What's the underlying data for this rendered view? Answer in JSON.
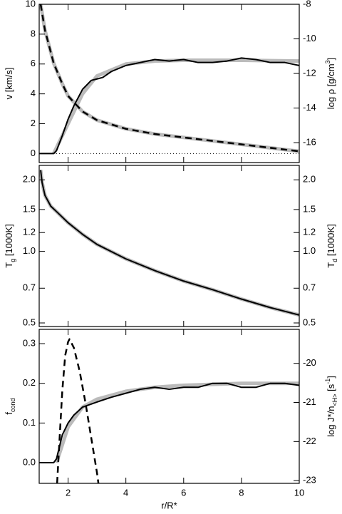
{
  "chart_data": [
    {
      "type": "line",
      "ylabel": [
        {
          "text": "v [km/s]"
        }
      ],
      "y2label": [
        {
          "text": "log ρ [g/cm"
        },
        {
          "text": "3",
          "shift": "super"
        },
        {
          "text": "]"
        }
      ],
      "xlim": [
        1,
        10
      ],
      "xticks": [
        2,
        4,
        6,
        8,
        10
      ],
      "ylim": [
        -0.6,
        10
      ],
      "yticks": [
        0,
        2,
        4,
        6,
        8,
        10
      ],
      "y2lim": [
        -17.15,
        -8
      ],
      "y2ticks": [
        -8,
        -10,
        -12,
        -14,
        -16
      ],
      "reference_line": {
        "value": 0,
        "style": "dotted"
      },
      "series": [
        {
          "color": "#bbbbbb",
          "width": 5,
          "dash": "solid",
          "x": [
            1.5,
            2,
            2.5,
            3,
            4,
            5,
            6,
            8,
            10
          ],
          "values": [
            0,
            2.0,
            4.0,
            5.2,
            6.0,
            6.2,
            6.25,
            6.25,
            6.2
          ]
        },
        {
          "color": "#bbbbbb",
          "width": 5,
          "dash": "solid",
          "axis": "y2",
          "x": [
            1.05,
            1.2,
            1.5,
            1.8,
            2,
            2.5,
            3,
            4,
            5,
            6,
            7,
            8,
            9,
            10
          ],
          "values": [
            -8.0,
            -9.5,
            -11.4,
            -12.6,
            -13.3,
            -14.2,
            -14.7,
            -15.2,
            -15.5,
            -15.7,
            -15.9,
            -16.1,
            -16.3,
            -16.5
          ]
        },
        {
          "color": "#000000",
          "width": 2,
          "dash": "solid",
          "x": [
            1,
            1.5,
            1.6,
            1.8,
            2,
            2.2,
            2.5,
            2.8,
            3,
            3.2,
            3.5,
            4,
            4.5,
            5,
            5.5,
            6,
            6.5,
            7,
            7.5,
            8,
            8.5,
            9,
            9.5,
            10
          ],
          "values": [
            0,
            0,
            0.2,
            1.2,
            2.3,
            3.2,
            4.3,
            4.9,
            5.0,
            5.1,
            5.5,
            5.9,
            6.1,
            6.3,
            6.2,
            6.3,
            6.1,
            6.1,
            6.2,
            6.4,
            6.3,
            6.1,
            6.1,
            5.9
          ]
        },
        {
          "color": "#000000",
          "width": 2.5,
          "dash": "dashed",
          "axis": "y2",
          "x": [
            1.05,
            1.2,
            1.5,
            1.8,
            2,
            2.5,
            3,
            4,
            5,
            6,
            7,
            8,
            9,
            10
          ],
          "values": [
            -8.0,
            -9.5,
            -11.4,
            -12.6,
            -13.3,
            -14.2,
            -14.7,
            -15.2,
            -15.5,
            -15.7,
            -15.9,
            -16.1,
            -16.3,
            -16.5
          ]
        }
      ]
    },
    {
      "type": "line",
      "log_scale": true,
      "ylabel": [
        {
          "text": "T"
        },
        {
          "text": "g",
          "shift": "sub"
        },
        {
          "text": " [1000K]"
        }
      ],
      "y2label": [
        {
          "text": "T"
        },
        {
          "text": "d",
          "shift": "sub"
        },
        {
          "text": " [1000K]"
        }
      ],
      "xlim": [
        1,
        10
      ],
      "xticks": [
        2,
        4,
        6,
        8,
        10
      ],
      "ylim": [
        0.483,
        2.3
      ],
      "yticks": [
        0.5,
        0.7,
        {
          "value": 1,
          "label": "1.0"
        },
        1.2,
        1.5,
        {
          "value": 2,
          "label": "2.0"
        }
      ],
      "y2lim": [
        0.483,
        2.3
      ],
      "y2ticks": [
        0.5,
        0.7,
        {
          "value": 1,
          "label": "1.0"
        },
        1.2,
        1.5,
        {
          "value": 2,
          "label": "2.0"
        }
      ],
      "series": [
        {
          "color": "#bbbbbb",
          "width": 5,
          "dash": "solid",
          "x": [
            1.05,
            1.1,
            1.2,
            1.4,
            1.6,
            2,
            2.5,
            3,
            4,
            5,
            6,
            7,
            8,
            9,
            10
          ],
          "values": [
            2.2,
            1.95,
            1.72,
            1.55,
            1.47,
            1.32,
            1.18,
            1.07,
            0.93,
            0.83,
            0.75,
            0.69,
            0.63,
            0.58,
            0.54
          ]
        },
        {
          "color": "#000000",
          "width": 2,
          "dash": "solid",
          "x": [
            1.05,
            1.1,
            1.2,
            1.4,
            1.6,
            2,
            2.5,
            3,
            4,
            5,
            6,
            7,
            8,
            9,
            10
          ],
          "values": [
            2.2,
            1.95,
            1.72,
            1.55,
            1.47,
            1.32,
            1.18,
            1.07,
            0.93,
            0.83,
            0.75,
            0.69,
            0.63,
            0.58,
            0.54
          ]
        }
      ]
    },
    {
      "type": "line",
      "xlabel": "r/R*",
      "ylabel": [
        {
          "text": "f"
        },
        {
          "text": "cond",
          "shift": "sub"
        }
      ],
      "y2label": [
        {
          "text": "log J*/n"
        },
        {
          "text": "<H>",
          "shift": "sub"
        },
        {
          "text": " [s"
        },
        {
          "text": "-1",
          "shift": "super"
        },
        {
          "text": "]"
        }
      ],
      "xlim": [
        1,
        10
      ],
      "xticks": [
        2,
        4,
        6,
        8,
        10
      ],
      "ylim": [
        -0.052,
        0.336
      ],
      "yticks": [
        {
          "value": 0,
          "label": "0.0"
        },
        0.1,
        0.2,
        0.3
      ],
      "y2lim": [
        -23.07,
        -19.13
      ],
      "y2ticks": [
        -20,
        -21,
        -22,
        -23
      ],
      "series": [
        {
          "color": "#bbbbbb",
          "width": 5,
          "dash": "solid",
          "x": [
            1.6,
            2,
            2.5,
            3,
            4,
            5,
            6,
            8,
            10
          ],
          "values": [
            0,
            0.09,
            0.14,
            0.16,
            0.18,
            0.19,
            0.195,
            0.2,
            0.2
          ]
        },
        {
          "color": "#000000",
          "width": 2,
          "dash": "solid",
          "x": [
            1,
            1.5,
            1.6,
            1.8,
            2,
            2.2,
            2.5,
            3,
            3.5,
            4,
            4.5,
            5,
            5.5,
            6,
            6.5,
            7,
            7.5,
            8,
            8.5,
            9,
            9.5,
            10
          ],
          "values": [
            0,
            0,
            0.01,
            0.07,
            0.1,
            0.12,
            0.14,
            0.153,
            0.165,
            0.175,
            0.185,
            0.19,
            0.185,
            0.19,
            0.19,
            0.2,
            0.2,
            0.19,
            0.19,
            0.2,
            0.2,
            0.195
          ]
        },
        {
          "color": "#000000",
          "width": 2.5,
          "dash": "dashed",
          "axis": "y2",
          "x": [
            1.62,
            1.7,
            1.8,
            1.9,
            2,
            2.05,
            2.2,
            2.4,
            2.6,
            2.8,
            3,
            3.05
          ],
          "values": [
            -23.07,
            -22.0,
            -20.7,
            -19.8,
            -19.45,
            -19.38,
            -19.6,
            -20.2,
            -21.0,
            -21.9,
            -22.8,
            -23.07
          ]
        }
      ]
    }
  ]
}
